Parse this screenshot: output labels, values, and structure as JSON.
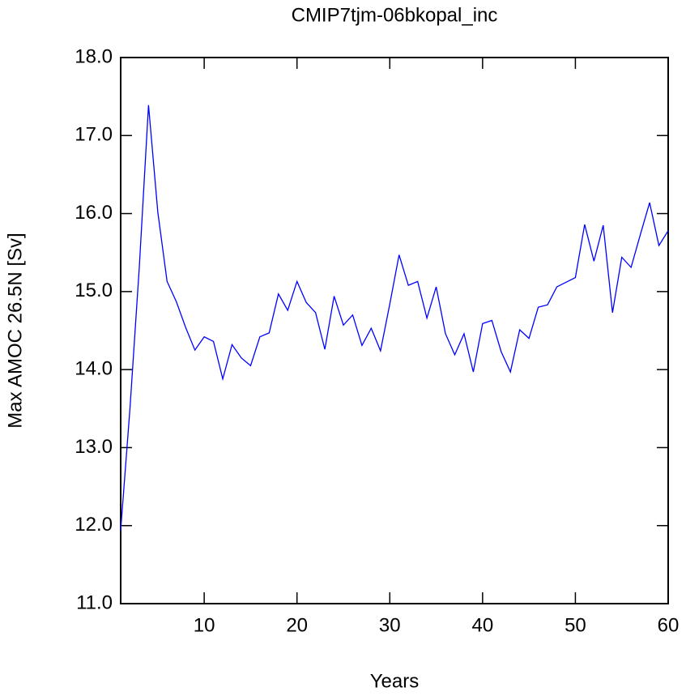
{
  "chart_data": {
    "type": "line",
    "title": "CMIP7tjm-06bkopal_inc",
    "x_label": "Years",
    "y_label": "Max AMOC 26.5N [Sv]",
    "x": [
      1,
      2,
      3,
      4,
      5,
      6,
      7,
      8,
      9,
      10,
      11,
      12,
      13,
      14,
      15,
      16,
      17,
      18,
      19,
      20,
      21,
      22,
      23,
      24,
      25,
      26,
      27,
      28,
      29,
      30,
      31,
      32,
      33,
      34,
      35,
      36,
      37,
      38,
      39,
      40,
      41,
      42,
      43,
      44,
      45,
      46,
      47,
      48,
      49,
      50,
      51,
      52,
      53,
      54,
      55,
      56,
      57,
      58,
      59,
      60
    ],
    "series": [
      {
        "name": "AMOC",
        "color": "#0000ff",
        "values": [
          11.94,
          13.5,
          15.3,
          17.39,
          16.02,
          15.13,
          14.87,
          14.54,
          14.25,
          14.42,
          14.36,
          13.88,
          14.32,
          14.15,
          14.05,
          14.42,
          14.47,
          14.97,
          14.76,
          15.13,
          14.86,
          14.73,
          14.26,
          14.94,
          14.57,
          14.7,
          14.31,
          14.53,
          14.24,
          14.84,
          15.47,
          15.08,
          15.13,
          14.66,
          15.06,
          14.46,
          14.19,
          14.46,
          13.97,
          14.59,
          14.63,
          14.23,
          13.97,
          14.51,
          14.4,
          14.8,
          14.83,
          15.06,
          15.12,
          15.18,
          15.86,
          15.39,
          15.85,
          14.73,
          15.44,
          15.31,
          15.73,
          16.14,
          15.59,
          15.78
        ]
      }
    ],
    "xlim": [
      1,
      60
    ],
    "xticks": [
      10,
      20,
      30,
      40,
      50,
      60
    ],
    "ylim": [
      11,
      18
    ],
    "yticks": [
      {
        "value": 11,
        "label": "11.0"
      },
      {
        "value": 12,
        "label": "12.0"
      },
      {
        "value": 13,
        "label": "13.0"
      },
      {
        "value": 14,
        "label": "14.0"
      },
      {
        "value": 15,
        "label": "15.0"
      },
      {
        "value": 16,
        "label": "16.0"
      },
      {
        "value": 17,
        "label": "17.0"
      },
      {
        "value": 18,
        "label": "18.0"
      }
    ]
  }
}
